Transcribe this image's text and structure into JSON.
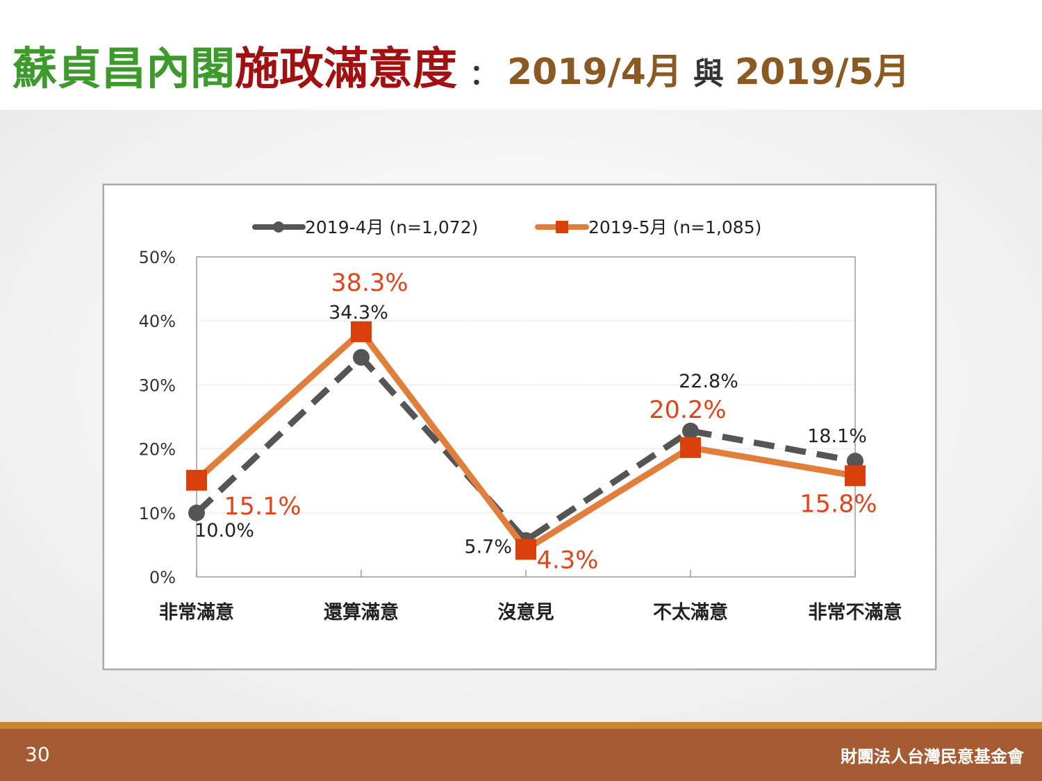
{
  "header": {
    "title_green": "蘇貞昌內閣",
    "title_red": "施政滿意度",
    "colon": "：",
    "date_a": "2019/4月",
    "connector": "與",
    "date_b": "2019/5月"
  },
  "colors": {
    "green": "#3f9a2e",
    "red": "#a01212",
    "brown": "#8a5a22",
    "series_a": "#555555",
    "series_b": "#e07e3c",
    "marker_b": "#d9400b",
    "label_b": "#e0441a",
    "footer": "#a65c32",
    "footer_stripe": "#c8862f"
  },
  "chart_data": {
    "type": "line",
    "categories": [
      "非常滿意",
      "還算滿意",
      "沒意見",
      "不太滿意",
      "非常不滿意"
    ],
    "series": [
      {
        "name": "2019-4月  (n=1,072)",
        "values": [
          10.0,
          34.3,
          5.7,
          22.8,
          18.1
        ],
        "labels": [
          "10.0%",
          "34.3%",
          "5.7%",
          "22.8%",
          "18.1%"
        ],
        "style": "dashed",
        "marker": "circle"
      },
      {
        "name": "2019-5月  (n=1,085)",
        "values": [
          15.1,
          38.3,
          4.3,
          20.2,
          15.8
        ],
        "labels": [
          "15.1%",
          "38.3%",
          "4.3%",
          "20.2%",
          "15.8%"
        ],
        "style": "solid",
        "marker": "square"
      }
    ],
    "yticks": [
      "0%",
      "10%",
      "20%",
      "30%",
      "40%",
      "50%"
    ],
    "ylim": [
      0,
      50
    ],
    "grid": true,
    "legend": "top"
  },
  "footer": {
    "page_number": "30",
    "organization": "財團法人台灣民意基金會"
  }
}
